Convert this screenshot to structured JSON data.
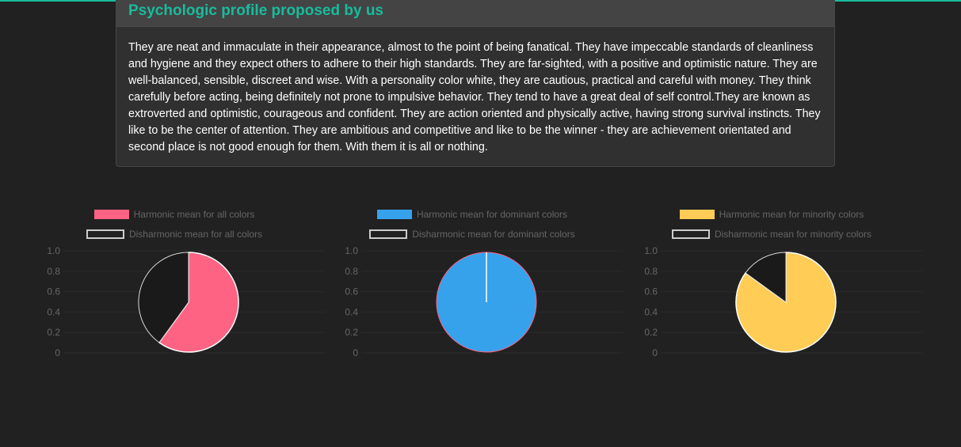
{
  "panel": {
    "title": "Psychologic profile proposed by us",
    "body": "They are neat and immaculate in their appearance, almost to the point of being fanatical. They have impeccable standards of cleanliness and hygiene and they expect others to adhere to their high standards. They are far-sighted, with a positive and optimistic nature. They are well-balanced, sensible, discreet and wise. With a personality color white, they are cautious, practical and careful with money. They think carefully before acting, being definitely not prone to impulsive behavior. They tend to have a great deal of self control.They are known as extroverted and optimistic, courageous and confident. They are action oriented and physically active, having strong survival instincts. They like to be the center of attention. They are ambitious and competitive and like to be the winner - they are achievement orientated and second place is not good enough for them. With them it is all or nothing."
  },
  "chart_data": [
    {
      "type": "pie",
      "legend_position": "top",
      "yticks": [
        "1.0",
        "0.8",
        "0.6",
        "0.4",
        "0.2",
        "0"
      ],
      "ylim": [
        0,
        1
      ],
      "series": [
        {
          "name": "Harmonic mean for all colors",
          "value": 0.6,
          "color": "#ff6384"
        },
        {
          "name": "Disharmonic mean for all colors",
          "value": 0.4,
          "color": "#1a1a1a"
        }
      ]
    },
    {
      "type": "pie",
      "legend_position": "top",
      "yticks": [
        "1.0",
        "0.8",
        "0.6",
        "0.4",
        "0.2",
        "0"
      ],
      "ylim": [
        0,
        1
      ],
      "series": [
        {
          "name": "Harmonic mean for dominant colors",
          "value": 1.0,
          "color": "#36a2eb"
        },
        {
          "name": "Disharmonic mean for dominant colors",
          "value": 0.0,
          "color": "#1a1a1a"
        }
      ]
    },
    {
      "type": "pie",
      "legend_position": "top",
      "yticks": [
        "1.0",
        "0.8",
        "0.6",
        "0.4",
        "0.2",
        "0"
      ],
      "ylim": [
        0,
        1
      ],
      "series": [
        {
          "name": "Harmonic mean for minority colors",
          "value": 0.85,
          "color": "#ffcd56"
        },
        {
          "name": "Disharmonic mean for minority colors",
          "value": 0.15,
          "color": "#1a1a1a"
        }
      ]
    }
  ]
}
